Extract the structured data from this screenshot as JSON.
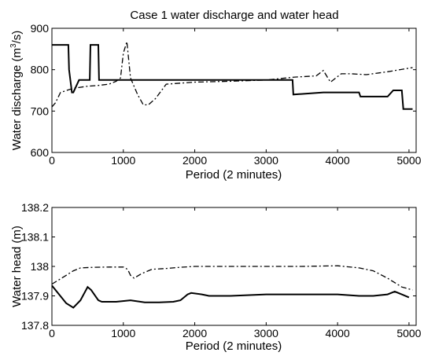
{
  "title": "Case 1 water discharge and water head",
  "chart_data": [
    {
      "type": "line",
      "title": "Case 1 water discharge and water head",
      "xlabel": "Period (2 minutes)",
      "ylabel": "Water discharge (m3/s)",
      "ylabel_base": "Water discharge (m",
      "ylabel_sup": "3",
      "ylabel_tail": "/s)",
      "xlim": [
        0,
        5100
      ],
      "ylim": [
        600,
        900
      ],
      "xticks": [
        0,
        1000,
        2000,
        3000,
        4000,
        5000
      ],
      "yticks": [
        600,
        700,
        800,
        900
      ],
      "xtick_labels": [
        "0",
        "1000",
        "2000",
        "3000",
        "4000",
        "5000"
      ],
      "ytick_labels": [
        "600",
        "700",
        "800",
        "900"
      ],
      "grid": false,
      "series": [
        {
          "style": "solid",
          "x": [
            0,
            230,
            240,
            280,
            300,
            380,
            390,
            530,
            540,
            650,
            660,
            1000,
            1500,
            2000,
            2500,
            3000,
            3370,
            3380,
            3800,
            4300,
            4320,
            4700,
            4780,
            4800,
            4900,
            4920,
            5050
          ],
          "y": [
            860,
            860,
            800,
            745,
            745,
            775,
            775,
            775,
            860,
            860,
            775,
            775,
            775,
            775,
            775,
            775,
            775,
            740,
            745,
            745,
            735,
            735,
            750,
            750,
            750,
            705,
            705
          ]
        },
        {
          "style": "dashdot",
          "x": [
            0,
            50,
            120,
            300,
            500,
            650,
            800,
            900,
            960,
            1000,
            1050,
            1100,
            1200,
            1280,
            1350,
            1450,
            1600,
            2000,
            2500,
            3000,
            3400,
            3700,
            3800,
            3900,
            4050,
            4200,
            4400,
            4700,
            5050
          ],
          "y": [
            710,
            720,
            745,
            755,
            760,
            762,
            765,
            772,
            780,
            840,
            868,
            780,
            740,
            715,
            715,
            730,
            765,
            770,
            772,
            775,
            782,
            785,
            798,
            770,
            790,
            790,
            788,
            795,
            805
          ]
        }
      ]
    },
    {
      "type": "line",
      "xlabel": "Period (2 minutes)",
      "ylabel": "Water head (m)",
      "xlim": [
        0,
        5100
      ],
      "ylim": [
        137.8,
        138.2
      ],
      "xticks": [
        0,
        1000,
        2000,
        3000,
        4000,
        5000
      ],
      "yticks": [
        137.8,
        137.9,
        138.0,
        138.1,
        138.2
      ],
      "xtick_labels": [
        "0",
        "1000",
        "2000",
        "3000",
        "4000",
        "5000"
      ],
      "ytick_labels": [
        "137.8",
        "137.9",
        "138",
        "138.1",
        "138.2"
      ],
      "grid": false,
      "series": [
        {
          "style": "solid",
          "x": [
            0,
            100,
            200,
            300,
            400,
            500,
            550,
            650,
            700,
            900,
            1100,
            1300,
            1500,
            1700,
            1800,
            1900,
            1950,
            2100,
            2200,
            2500,
            3000,
            3500,
            4000,
            4300,
            4500,
            4700,
            4800,
            5000
          ],
          "y": [
            137.935,
            137.905,
            137.875,
            137.86,
            137.885,
            137.93,
            137.92,
            137.885,
            137.88,
            137.88,
            137.885,
            137.878,
            137.878,
            137.88,
            137.885,
            137.905,
            137.91,
            137.905,
            137.9,
            137.9,
            137.905,
            137.905,
            137.905,
            137.9,
            137.9,
            137.905,
            137.915,
            137.895
          ]
        },
        {
          "style": "dashdot",
          "x": [
            0,
            100,
            200,
            300,
            400,
            600,
            800,
            1000,
            1060,
            1100,
            1150,
            1250,
            1400,
            1600,
            1800,
            2000,
            2500,
            3000,
            3500,
            4000,
            4300,
            4500,
            4700,
            4900,
            5050
          ],
          "y": [
            137.94,
            137.955,
            137.97,
            137.985,
            137.995,
            137.997,
            137.998,
            137.998,
            137.99,
            137.97,
            137.96,
            137.975,
            137.99,
            137.993,
            137.997,
            138.0,
            138.0,
            138.0,
            138.0,
            138.002,
            137.995,
            137.985,
            137.96,
            137.93,
            137.92
          ]
        }
      ]
    }
  ]
}
